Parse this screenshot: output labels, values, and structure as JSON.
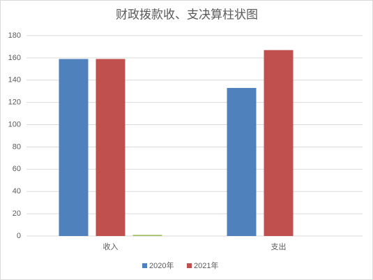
{
  "chart_data": {
    "type": "bar",
    "title": "财政拨款收、支决算柱状图",
    "categories": [
      "收入",
      "支出"
    ],
    "series": [
      {
        "name": "2020年",
        "color": "#4f81bd",
        "values": [
          159,
          133
        ]
      },
      {
        "name": "2021年",
        "color": "#c0504d",
        "values": [
          159,
          167
        ]
      },
      {
        "color": "#9bbb59",
        "values": [
          1,
          0
        ]
      }
    ],
    "ylim": [
      0,
      180
    ],
    "yticks": [
      0,
      20,
      40,
      60,
      80,
      100,
      120,
      140,
      160,
      180
    ],
    "grid": true,
    "legend": "bottom"
  }
}
